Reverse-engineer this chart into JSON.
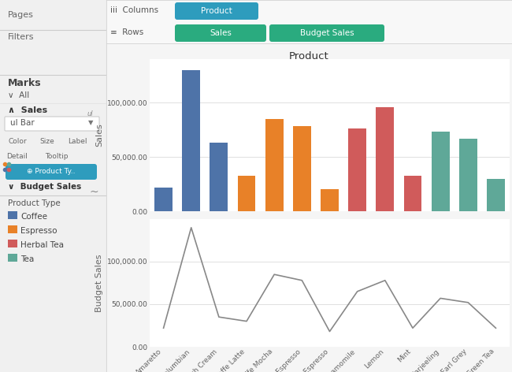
{
  "products": [
    "Amaretto",
    "Columbian",
    "Decaf Irish Cream",
    "Caffe Latte",
    "Caffe Mocha",
    "Decaf Espresso",
    "Regular Espresso",
    "Chamomile",
    "Lemon",
    "Mint",
    "Darjeeling",
    "Earl Grey",
    "Green Tea"
  ],
  "sales": [
    22000,
    130000,
    63000,
    33000,
    85000,
    78000,
    20000,
    76000,
    96000,
    33000,
    73000,
    67000,
    30000
  ],
  "budget_sales": [
    22000,
    140000,
    35000,
    30000,
    85000,
    78000,
    18000,
    65000,
    78000,
    22000,
    57000,
    52000,
    22000
  ],
  "product_types": [
    "Coffee",
    "Coffee",
    "Coffee",
    "Espresso",
    "Espresso",
    "Espresso",
    "Espresso",
    "Herbal Tea",
    "Herbal Tea",
    "Herbal Tea",
    "Tea",
    "Tea",
    "Tea"
  ],
  "type_colors": {
    "Coffee": "#4e73a8",
    "Espresso": "#e88128",
    "Herbal Tea": "#d05b5b",
    "Tea": "#5fa898"
  },
  "line_color": "#888888",
  "title": "Product",
  "sales_ylabel": "Sales",
  "budget_ylabel": "Budget Sales",
  "sales_ylim": [
    0,
    140000
  ],
  "budget_ylim": [
    0,
    150000
  ],
  "sales_yticks": [
    0,
    50000,
    100000
  ],
  "budget_yticks": [
    0,
    50000,
    100000
  ],
  "bg_color": "#f0f0f0",
  "panel_color": "#ffffff",
  "chart_outer_color": "#f5f5f5",
  "grid_color": "#e0e0e0",
  "sidebar_bg": "#f0f0f0",
  "pill_color": "#2aab7f",
  "pill_color_blue": "#2e9cbd",
  "legend_labels": [
    "Coffee",
    "Espresso",
    "Herbal Tea",
    "Tea"
  ],
  "legend_colors": [
    "#4e73a8",
    "#e88128",
    "#d05b5b",
    "#5fa898"
  ]
}
